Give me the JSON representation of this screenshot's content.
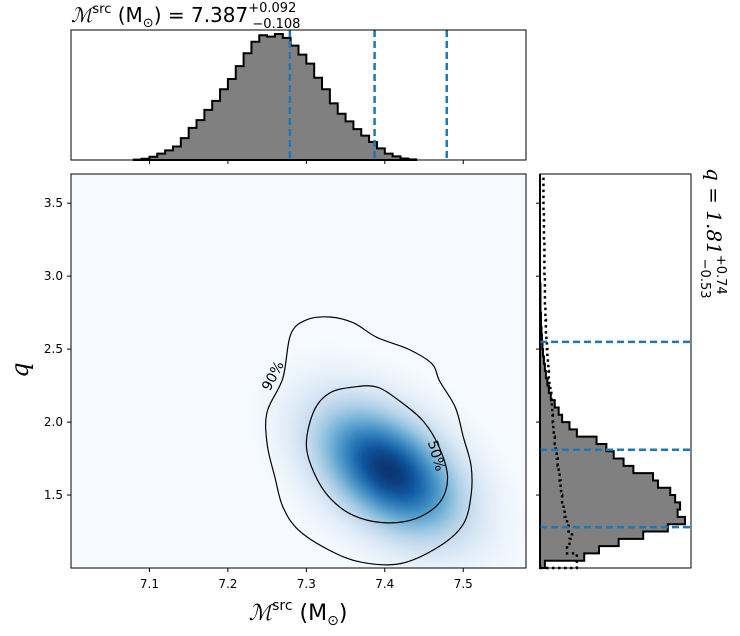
{
  "chart_data": [
    {
      "type": "histogram",
      "panel": "top-marginal",
      "title": {
        "main": "ℳ",
        "sup": "src",
        "unit_open": " (M",
        "unit_sub": "⊙",
        "equals": ") = 7.387",
        "err_plus": "+0.092",
        "err_minus": "−0.108"
      },
      "xlim": [
        7.0,
        7.58
      ],
      "bin_edges_start": 7.08,
      "bin_width": 0.01,
      "density": [
        0.3,
        1.0,
        2.5,
        5.0,
        7.5,
        10.5,
        17,
        25,
        31,
        39,
        46,
        55,
        63,
        73,
        83,
        92,
        97,
        96,
        98,
        95,
        89,
        82,
        75,
        64,
        55,
        44,
        36,
        30,
        24,
        19,
        14,
        9,
        5,
        2.8,
        1.2,
        0.5
      ],
      "quantile_lines": [
        7.279,
        7.387,
        7.479
      ],
      "color": "#808080",
      "line_color": "#1f77b4"
    },
    {
      "type": "heatmap",
      "panel": "joint",
      "xlabel": {
        "main": "ℳ",
        "sup": "src",
        "unit_open": " (M",
        "unit_sub": "⊙",
        "unit_close": ")"
      },
      "ylabel": "q",
      "xlim": [
        7.0,
        7.58
      ],
      "ylim": [
        1.0,
        3.7
      ],
      "xticks": [
        "7.1",
        "7.2",
        "7.3",
        "7.4",
        "7.5"
      ],
      "yticks": [
        "1.5",
        "2.0",
        "2.5",
        "3.0",
        "3.5"
      ],
      "peak": {
        "x": 7.405,
        "y": 1.67
      },
      "colormap": "Blues",
      "contours": [
        {
          "label": "50%",
          "points": [
            [
              7.31,
              2.08
            ],
            [
              7.33,
              2.2
            ],
            [
              7.36,
              2.24
            ],
            [
              7.39,
              2.24
            ],
            [
              7.42,
              2.14
            ],
            [
              7.45,
              2.0
            ],
            [
              7.47,
              1.82
            ],
            [
              7.48,
              1.62
            ],
            [
              7.47,
              1.45
            ],
            [
              7.44,
              1.34
            ],
            [
              7.4,
              1.31
            ],
            [
              7.36,
              1.36
            ],
            [
              7.33,
              1.48
            ],
            [
              7.31,
              1.65
            ],
            [
              7.3,
              1.85
            ]
          ]
        },
        {
          "label": "90%",
          "points": [
            [
              7.27,
              2.3
            ],
            [
              7.28,
              2.6
            ],
            [
              7.3,
              2.7
            ],
            [
              7.33,
              2.72
            ],
            [
              7.36,
              2.68
            ],
            [
              7.39,
              2.58
            ],
            [
              7.43,
              2.5
            ],
            [
              7.46,
              2.4
            ],
            [
              7.47,
              2.28
            ],
            [
              7.49,
              2.1
            ],
            [
              7.5,
              1.9
            ],
            [
              7.51,
              1.7
            ],
            [
              7.51,
              1.5
            ],
            [
              7.5,
              1.3
            ],
            [
              7.47,
              1.15
            ],
            [
              7.42,
              1.03
            ],
            [
              7.37,
              1.04
            ],
            [
              7.33,
              1.12
            ],
            [
              7.29,
              1.26
            ],
            [
              7.27,
              1.42
            ],
            [
              7.26,
              1.62
            ],
            [
              7.25,
              1.85
            ],
            [
              7.25,
              2.07
            ]
          ]
        }
      ]
    },
    {
      "type": "histogram",
      "panel": "right-marginal",
      "orientation": "horizontal",
      "title": {
        "main": "q = 1.81",
        "err_plus": "+0.74",
        "err_minus": "−0.53"
      },
      "ylim": [
        1.0,
        3.7
      ],
      "bin_edges_start": 1.0,
      "bin_width": 0.05,
      "density": [
        0.1,
        0.9,
        1.2,
        1.6,
        2.1,
        2.6,
        2.95,
        2.8,
        2.85,
        2.75,
        2.65,
        2.4,
        2.3,
        1.9,
        1.7,
        1.5,
        1.35,
        1.15,
        0.75,
        0.6,
        0.45,
        0.38,
        0.3,
        0.22,
        0.18,
        0.15,
        0.12,
        0.1,
        0.08,
        0.06,
        0.05,
        0.04,
        0.03,
        0.02,
        0.02,
        0.01,
        0.01,
        0.01,
        0.01,
        0.0,
        0.0,
        0.0,
        0.0,
        0.0,
        0.0,
        0.0,
        0.0,
        0.0,
        0.0,
        0.0,
        0.0,
        0.0,
        0.0,
        0.0
      ],
      "prior_density": [
        0.75,
        0.75,
        0.55,
        0.6,
        0.65,
        0.58,
        0.55,
        0.5,
        0.48,
        0.45,
        0.43,
        0.42,
        0.4,
        0.38,
        0.36,
        0.34,
        0.32,
        0.3,
        0.28,
        0.27,
        0.26,
        0.25,
        0.24,
        0.23,
        0.21,
        0.19,
        0.18,
        0.17,
        0.16,
        0.15,
        0.14,
        0.13,
        0.12,
        0.12,
        0.11,
        0.11,
        0.1,
        0.1,
        0.1,
        0.1,
        0.09,
        0.09,
        0.09,
        0.09,
        0.09,
        0.08,
        0.08,
        0.08,
        0.08,
        0.07,
        0.07,
        0.07,
        0.07,
        0.07
      ],
      "quantile_lines": [
        1.28,
        1.81,
        2.55
      ],
      "color": "#808080",
      "line_color": "#1f77b4"
    }
  ]
}
